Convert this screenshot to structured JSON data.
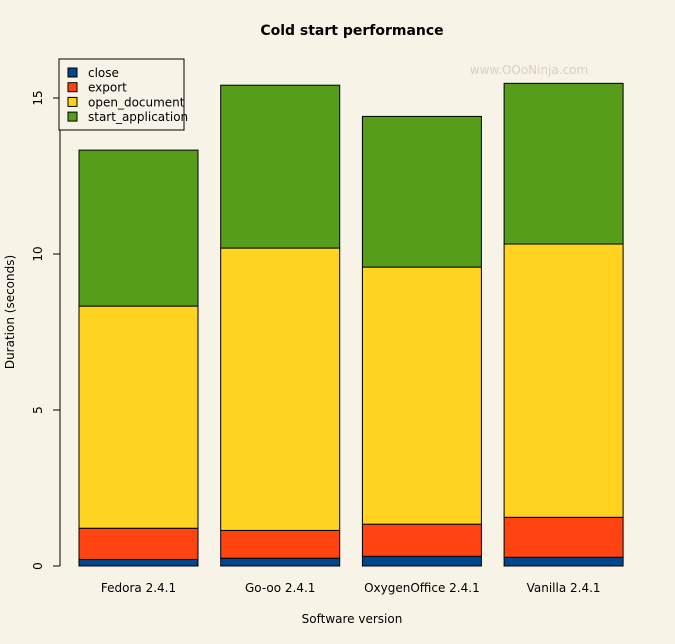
{
  "chart_data": {
    "type": "bar",
    "stacked": true,
    "title": "Cold start performance",
    "xlabel": "Software version",
    "ylabel": "Duration (seconds)",
    "ylim": [
      0,
      16
    ],
    "yticks": [
      0,
      5,
      10,
      15
    ],
    "categories": [
      "Fedora 2.4.1",
      "Go-oo 2.4.1",
      "OxygenOffice 2.4.1",
      "Vanilla 2.4.1"
    ],
    "series": [
      {
        "name": "close",
        "color": "#00468b",
        "values": [
          0.21,
          0.25,
          0.31,
          0.28
        ]
      },
      {
        "name": "export",
        "color": "#ff4411",
        "values": [
          1.0,
          0.89,
          1.03,
          1.28
        ]
      },
      {
        "name": "open_document",
        "color": "#ffd320",
        "values": [
          7.12,
          9.05,
          8.24,
          8.76
        ]
      },
      {
        "name": "start_application",
        "color": "#579d1c",
        "values": [
          5.0,
          5.22,
          4.83,
          5.15
        ]
      }
    ],
    "legend_position": "top-left",
    "watermark": "www.OOoNinja.com"
  }
}
